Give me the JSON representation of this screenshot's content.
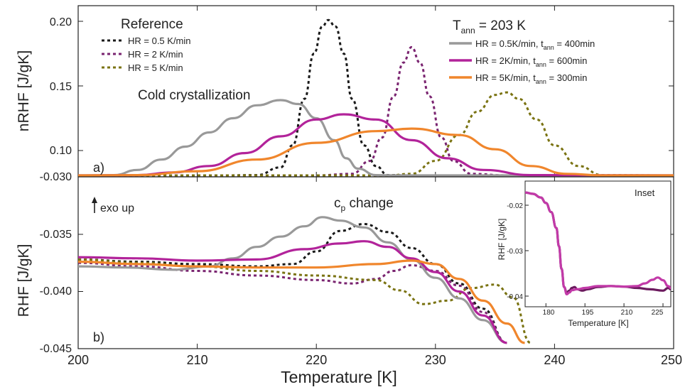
{
  "figure": {
    "xlabel": "Temperature [K]",
    "x_ticks": [
      "200",
      "210",
      "220",
      "230",
      "240",
      "250"
    ],
    "top_panel": {
      "ylabel": "nRHF [J/gK]",
      "panel_label": "a)",
      "y_ticks": [
        "0.20",
        "0.15",
        "0.10",
        "-0.030"
      ],
      "legend_ref_title": "Reference",
      "legend_ref": [
        "HR = 0.5 K/min",
        "HR = 2 K/min",
        "HR = 5 K/min"
      ],
      "legend_ann_title_main": "T",
      "legend_ann_title_sub": "ann",
      "legend_ann_title_rest": " = 203 K",
      "legend_ann": [
        {
          "pre": "HR = 0.5K/min, t",
          "sub": "ann",
          "post": " = 400min"
        },
        {
          "pre": "HR = 2K/min, t",
          "sub": "ann",
          "post": " = 600min"
        },
        {
          "pre": "HR = 5K/min, t",
          "sub": "ann",
          "post": " = 300min"
        }
      ],
      "annotation": "Cold crystallization"
    },
    "bottom_panel": {
      "ylabel": "RHF [J/gK]",
      "panel_label": "b)",
      "y_ticks": [
        "-0.035",
        "-0.040",
        "-0.045"
      ],
      "exo_label": "exo up",
      "cp_main": "c",
      "cp_sub": "p",
      "cp_rest": " change"
    },
    "inset": {
      "title": "Inset",
      "ylabel": "RHF [J/gK]",
      "xlabel": "Temperature [K]",
      "x_ticks": [
        "180",
        "195",
        "210",
        "225"
      ],
      "y_ticks": [
        "-0.02",
        "-0.03",
        "-0.04"
      ]
    }
  },
  "colors": {
    "ref_05": "#1a1a1a",
    "ref_2": "#7a2470",
    "ref_5": "#7a7312",
    "ann_05": "#999999",
    "ann_2": "#b2239a",
    "ann_5": "#f0862c",
    "inset_a": "#6b1a5e",
    "inset_b": "#c23aa8"
  },
  "chart_data": [
    {
      "type": "line",
      "panel": "top",
      "ylabel": "nRHF [J/gK]",
      "xlim": [
        200,
        250
      ],
      "y_ticks_shown": [
        0.2,
        0.15,
        0.1
      ],
      "series": [
        {
          "name": "HR = 0.5 K/min",
          "style": "dotted",
          "color": "#1a1a1a",
          "x": [
            200,
            212,
            215,
            217,
            218,
            219,
            219.8,
            220.5,
            221,
            221.6,
            222.3,
            223,
            224,
            225,
            226,
            228,
            250
          ],
          "y": [
            0.08,
            0.08,
            0.081,
            0.087,
            0.104,
            0.14,
            0.175,
            0.196,
            0.201,
            0.196,
            0.175,
            0.14,
            0.104,
            0.088,
            0.081,
            0.08,
            0.08
          ]
        },
        {
          "name": "HR = 2 K/min",
          "style": "dotted",
          "color": "#7a2470",
          "x": [
            200,
            220,
            223,
            224.5,
            225.5,
            226.5,
            227.3,
            228,
            228.7,
            229.5,
            230.5,
            231.5,
            233,
            236,
            250
          ],
          "y": [
            0.08,
            0.08,
            0.082,
            0.092,
            0.11,
            0.142,
            0.168,
            0.18,
            0.168,
            0.142,
            0.11,
            0.092,
            0.082,
            0.08,
            0.08
          ]
        },
        {
          "name": "HR = 5 K/min",
          "style": "dotted",
          "color": "#7a7312",
          "x": [
            200,
            226,
            228,
            230,
            232,
            233.5,
            235,
            236,
            237,
            238.5,
            240,
            242,
            244,
            250
          ],
          "y": [
            0.08,
            0.08,
            0.082,
            0.092,
            0.112,
            0.13,
            0.143,
            0.145,
            0.14,
            0.124,
            0.104,
            0.088,
            0.081,
            0.08
          ]
        },
        {
          "name": "HR = 0.5K/min, t_ann = 400min",
          "style": "solid",
          "color": "#999999",
          "x": [
            200,
            203,
            205,
            207,
            209,
            211,
            213,
            215,
            217,
            218.5,
            220,
            221.5,
            222.5,
            223.5,
            225,
            227,
            250
          ],
          "y": [
            0.08,
            0.081,
            0.085,
            0.093,
            0.103,
            0.114,
            0.125,
            0.135,
            0.139,
            0.136,
            0.125,
            0.108,
            0.094,
            0.086,
            0.081,
            0.08,
            0.08
          ]
        },
        {
          "name": "HR = 2K/min, t_ann = 600min",
          "style": "solid",
          "color": "#b2239a",
          "x": [
            200,
            205,
            208,
            211,
            214,
            217,
            220,
            222.3,
            225,
            228,
            231,
            234,
            238,
            250
          ],
          "y": [
            0.08,
            0.081,
            0.083,
            0.088,
            0.098,
            0.111,
            0.124,
            0.128,
            0.124,
            0.108,
            0.094,
            0.085,
            0.081,
            0.08
          ]
        },
        {
          "name": "HR = 5K/min, t_ann = 300min",
          "style": "solid",
          "color": "#f0862c",
          "x": [
            200,
            205,
            210,
            215,
            220,
            225,
            228,
            232,
            235,
            238,
            241,
            244,
            250
          ],
          "y": [
            0.08,
            0.081,
            0.084,
            0.093,
            0.106,
            0.115,
            0.117,
            0.112,
            0.101,
            0.088,
            0.082,
            0.08,
            0.08
          ]
        }
      ]
    },
    {
      "type": "line",
      "panel": "bottom",
      "ylabel": "RHF [J/gK]",
      "xlim": [
        200,
        250
      ],
      "ylim": [
        -0.045,
        -0.0305
      ],
      "series": [
        {
          "name": "HR = 0.5 K/min",
          "style": "dotted",
          "color": "#1a1a1a",
          "x": [
            200,
            205,
            210,
            215,
            218,
            220,
            222,
            224,
            226,
            228,
            230,
            232,
            234,
            236
          ],
          "y": [
            -0.0372,
            -0.0374,
            -0.0376,
            -0.0378,
            -0.0376,
            -0.0365,
            -0.0347,
            -0.0341,
            -0.0348,
            -0.0362,
            -0.0376,
            -0.0393,
            -0.0415,
            -0.0445
          ]
        },
        {
          "name": "HR = 2 K/min",
          "style": "dotted",
          "color": "#7a2470",
          "x": [
            200,
            205,
            210,
            215,
            220,
            223,
            225,
            226.5,
            228,
            230,
            232,
            234,
            236
          ],
          "y": [
            -0.0375,
            -0.0378,
            -0.0382,
            -0.0386,
            -0.039,
            -0.0393,
            -0.0389,
            -0.0382,
            -0.0377,
            -0.0382,
            -0.0395,
            -0.0418,
            -0.0445
          ]
        },
        {
          "name": "HR = 5 K/min",
          "style": "dotted",
          "color": "#7a7312",
          "x": [
            200,
            205,
            210,
            215,
            220,
            225,
            227,
            229,
            231,
            233,
            235,
            236.5,
            238
          ],
          "y": [
            -0.0372,
            -0.0375,
            -0.0378,
            -0.0382,
            -0.0386,
            -0.039,
            -0.0399,
            -0.0411,
            -0.0408,
            -0.0397,
            -0.0394,
            -0.0405,
            -0.0445
          ]
        },
        {
          "name": "HR = 0.5K/min, t_ann = 400min",
          "style": "solid",
          "color": "#999999",
          "x": [
            200,
            204,
            208,
            211,
            213,
            215,
            217,
            219,
            220.5,
            222,
            224,
            226,
            228,
            230,
            232,
            234,
            236
          ],
          "y": [
            -0.0378,
            -0.0379,
            -0.0381,
            -0.0378,
            -0.0371,
            -0.0361,
            -0.0352,
            -0.0343,
            -0.0335,
            -0.0338,
            -0.0344,
            -0.0357,
            -0.0372,
            -0.0388,
            -0.0406,
            -0.0425,
            -0.0445
          ]
        },
        {
          "name": "HR = 2K/min, t_ann = 600min",
          "style": "solid",
          "color": "#b2239a",
          "x": [
            200,
            205,
            210,
            215,
            219,
            222,
            224,
            226,
            228,
            230,
            232,
            234,
            236
          ],
          "y": [
            -0.037,
            -0.0371,
            -0.0373,
            -0.0372,
            -0.0363,
            -0.0358,
            -0.0356,
            -0.0361,
            -0.0371,
            -0.0383,
            -0.04,
            -0.0421,
            -0.0445
          ]
        },
        {
          "name": "HR = 5K/min, t_ann = 300min",
          "style": "solid",
          "color": "#f0862c",
          "x": [
            200,
            205,
            210,
            215,
            220,
            225,
            228,
            230,
            232,
            234,
            236,
            237.5
          ],
          "y": [
            -0.0374,
            -0.0376,
            -0.0378,
            -0.0379,
            -0.0379,
            -0.0376,
            -0.0373,
            -0.0376,
            -0.0389,
            -0.0408,
            -0.0428,
            -0.0445
          ]
        }
      ]
    },
    {
      "type": "line",
      "panel": "inset",
      "xlabel": "Temperature [K]",
      "ylabel": "RHF [J/gK]",
      "xlim": [
        172,
        228
      ],
      "ylim": [
        -0.042,
        -0.015
      ],
      "series": [
        {
          "style": "solid",
          "color": "#6b1a5e",
          "x": [
            172,
            175,
            178,
            180,
            182,
            184,
            185,
            186,
            187,
            188,
            189,
            190,
            191,
            192,
            194,
            196,
            200,
            205,
            210,
            215,
            220,
            225,
            227,
            228
          ],
          "y": [
            -0.0172,
            -0.0175,
            -0.0183,
            -0.0195,
            -0.0215,
            -0.025,
            -0.029,
            -0.034,
            -0.038,
            -0.0392,
            -0.0388,
            -0.0382,
            -0.038,
            -0.0385,
            -0.0388,
            -0.0385,
            -0.038,
            -0.0378,
            -0.0379,
            -0.0382,
            -0.0385,
            -0.0388,
            -0.0382,
            -0.0385
          ]
        },
        {
          "style": "solid",
          "color": "#c23aa8",
          "x": [
            172,
            175,
            178,
            180,
            182,
            184,
            185,
            186,
            187,
            188,
            189,
            190,
            192,
            195,
            200,
            205,
            210,
            215,
            218,
            221,
            223,
            225,
            227,
            228
          ],
          "y": [
            -0.0172,
            -0.0175,
            -0.0183,
            -0.0195,
            -0.0215,
            -0.025,
            -0.029,
            -0.034,
            -0.038,
            -0.0396,
            -0.0392,
            -0.0387,
            -0.0385,
            -0.0382,
            -0.0378,
            -0.0378,
            -0.0379,
            -0.0378,
            -0.0372,
            -0.0364,
            -0.0359,
            -0.0365,
            -0.0378,
            -0.0382
          ]
        }
      ]
    }
  ]
}
